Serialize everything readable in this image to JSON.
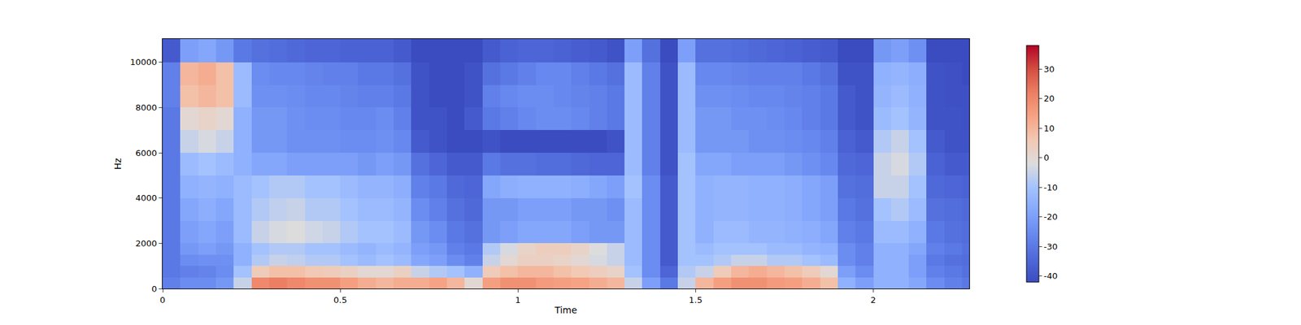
{
  "chart_data": {
    "type": "heatmap",
    "xlabel": "Time",
    "ylabel": "Hz",
    "x": [
      0,
      0.05,
      0.1,
      0.15,
      0.2,
      0.25,
      0.3,
      0.35,
      0.4,
      0.45,
      0.5,
      0.55,
      0.6,
      0.65,
      0.7,
      0.75,
      0.8,
      0.85,
      0.9,
      0.95,
      1.0,
      1.05,
      1.1,
      1.15,
      1.2,
      1.25,
      1.3,
      1.35,
      1.4,
      1.45,
      1.5,
      1.55,
      1.6,
      1.65,
      1.7,
      1.75,
      1.8,
      1.85,
      1.9,
      1.95,
      2.0,
      2.05,
      2.1,
      2.15,
      2.2,
      2.25,
      2.27
    ],
    "y": [
      0,
      500,
      1000,
      1500,
      2000,
      3000,
      4000,
      5000,
      6000,
      7000,
      8000,
      9000,
      10000,
      11025
    ],
    "cells": [
      [
        -28,
        -25,
        -25,
        -22,
        -5,
        20,
        22,
        20,
        18,
        18,
        15,
        12,
        10,
        12,
        12,
        14,
        10,
        0,
        15,
        18,
        18,
        16,
        15,
        14,
        12,
        10,
        -5,
        -20,
        -30,
        -5,
        10,
        15,
        18,
        18,
        16,
        15,
        12,
        8,
        -15,
        -20,
        -15,
        -15,
        -18,
        -25,
        -28,
        -30
      ],
      [
        -30,
        -28,
        -27,
        -25,
        -10,
        5,
        8,
        8,
        6,
        5,
        3,
        0,
        0,
        3,
        -5,
        -8,
        -10,
        -15,
        5,
        8,
        10,
        10,
        8,
        6,
        4,
        2,
        -10,
        -25,
        -35,
        -8,
        -5,
        5,
        10,
        12,
        10,
        8,
        5,
        0,
        -20,
        -25,
        -15,
        -15,
        -20,
        -28,
        -30,
        -32
      ],
      [
        -30,
        -25,
        -24,
        -24,
        -15,
        -8,
        -5,
        -6,
        -8,
        -8,
        -10,
        -12,
        -10,
        -12,
        -18,
        -20,
        -25,
        -28,
        -5,
        0,
        3,
        3,
        2,
        0,
        -3,
        -5,
        -12,
        -25,
        -38,
        -10,
        -10,
        -8,
        -5,
        -5,
        -8,
        -8,
        -10,
        -12,
        -25,
        -28,
        -15,
        -15,
        -20,
        -30,
        -32,
        -33
      ],
      [
        -30,
        -22,
        -20,
        -22,
        -15,
        -10,
        -8,
        -8,
        -10,
        -10,
        -12,
        -14,
        -12,
        -14,
        -20,
        -22,
        -28,
        -30,
        -8,
        -3,
        2,
        4,
        4,
        2,
        -2,
        -5,
        -12,
        -25,
        -38,
        -10,
        -12,
        -10,
        -10,
        -10,
        -12,
        -12,
        -14,
        -15,
        -25,
        -28,
        -15,
        -15,
        -18,
        -28,
        -30,
        -32
      ],
      [
        -30,
        -20,
        -18,
        -20,
        -12,
        -5,
        -3,
        -2,
        -4,
        -5,
        -8,
        -10,
        -10,
        -12,
        -22,
        -25,
        -30,
        -32,
        -22,
        -20,
        -18,
        -18,
        -18,
        -20,
        -22,
        -22,
        -12,
        -25,
        -38,
        -10,
        -15,
        -12,
        -12,
        -14,
        -14,
        -15,
        -16,
        -18,
        -28,
        -30,
        -12,
        -12,
        -15,
        -30,
        -32,
        -33
      ],
      [
        -30,
        -18,
        -16,
        -18,
        -12,
        -8,
        -6,
        -5,
        -8,
        -8,
        -10,
        -12,
        -12,
        -14,
        -25,
        -28,
        -32,
        -34,
        -22,
        -22,
        -20,
        -20,
        -20,
        -22,
        -22,
        -24,
        -12,
        -25,
        -38,
        -10,
        -15,
        -14,
        -14,
        -15,
        -15,
        -16,
        -18,
        -20,
        -30,
        -32,
        -10,
        -8,
        -12,
        -32,
        -33,
        -34
      ],
      [
        -30,
        -15,
        -14,
        -15,
        -12,
        -10,
        -8,
        -8,
        -10,
        -10,
        -12,
        -14,
        -14,
        -16,
        -28,
        -30,
        -34,
        -35,
        -18,
        -16,
        -15,
        -15,
        -15,
        -16,
        -18,
        -20,
        -10,
        -25,
        -38,
        -10,
        -15,
        -14,
        -14,
        -15,
        -15,
        -16,
        -18,
        -20,
        -32,
        -33,
        -5,
        -5,
        -10,
        -34,
        -35,
        -36
      ],
      [
        -30,
        -12,
        -10,
        -12,
        -15,
        -18,
        -18,
        -20,
        -20,
        -20,
        -20,
        -22,
        -20,
        -22,
        -32,
        -35,
        -38,
        -38,
        -30,
        -32,
        -32,
        -33,
        -33,
        -34,
        -35,
        -35,
        -12,
        -28,
        -40,
        -10,
        -18,
        -18,
        -20,
        -20,
        -20,
        -22,
        -24,
        -26,
        -34,
        -35,
        -5,
        -3,
        -8,
        -36,
        -38,
        -38
      ],
      [
        -30,
        -5,
        -3,
        -5,
        -15,
        -22,
        -22,
        -24,
        -24,
        -24,
        -25,
        -25,
        -24,
        -26,
        -38,
        -40,
        -42,
        -42,
        -40,
        -42,
        -42,
        -42,
        -42,
        -42,
        -42,
        -40,
        -12,
        -28,
        -40,
        -12,
        -22,
        -22,
        -22,
        -24,
        -24,
        -25,
        -26,
        -28,
        -36,
        -38,
        -8,
        -5,
        -10,
        -38,
        -40,
        -40
      ],
      [
        -30,
        0,
        2,
        0,
        -15,
        -22,
        -22,
        -24,
        -25,
        -25,
        -26,
        -26,
        -25,
        -28,
        -40,
        -40,
        -42,
        -38,
        -30,
        -28,
        -26,
        -25,
        -25,
        -26,
        -28,
        -30,
        -12,
        -28,
        -40,
        -12,
        -22,
        -22,
        -24,
        -24,
        -25,
        -26,
        -28,
        -30,
        -38,
        -40,
        -12,
        -10,
        -14,
        -40,
        -40,
        -41
      ],
      [
        -28,
        8,
        10,
        8,
        -12,
        -24,
        -24,
        -25,
        -26,
        -26,
        -27,
        -28,
        -28,
        -30,
        -40,
        -42,
        -42,
        -40,
        -28,
        -26,
        -25,
        -25,
        -26,
        -27,
        -28,
        -30,
        -12,
        -28,
        -40,
        -12,
        -24,
        -24,
        -25,
        -26,
        -26,
        -27,
        -28,
        -30,
        -38,
        -40,
        -14,
        -12,
        -15,
        -40,
        -41,
        -41
      ],
      [
        -28,
        10,
        12,
        8,
        -12,
        -25,
        -26,
        -26,
        -27,
        -28,
        -28,
        -30,
        -30,
        -32,
        -40,
        -42,
        -42,
        -40,
        -32,
        -30,
        -28,
        -26,
        -26,
        -28,
        -30,
        -32,
        -12,
        -28,
        -40,
        -12,
        -26,
        -26,
        -27,
        -28,
        -28,
        -28,
        -30,
        -32,
        -40,
        -40,
        -15,
        -14,
        -16,
        -40,
        -41,
        -42
      ],
      [
        -38,
        -20,
        -18,
        -22,
        -30,
        -32,
        -33,
        -34,
        -35,
        -35,
        -36,
        -36,
        -36,
        -38,
        -42,
        -42,
        -42,
        -42,
        -38,
        -36,
        -35,
        -35,
        -36,
        -37,
        -38,
        -40,
        -20,
        -32,
        -42,
        -20,
        -32,
        -32,
        -33,
        -34,
        -35,
        -36,
        -37,
        -38,
        -42,
        -42,
        -22,
        -20,
        -24,
        -42,
        -42,
        -42
      ]
    ],
    "xlim": [
      0,
      2.27
    ],
    "xticks": [
      0,
      0.5,
      1,
      1.5,
      2
    ],
    "ylim": [
      0,
      11025
    ],
    "yticks": [
      0,
      2000,
      4000,
      6000,
      8000,
      10000
    ],
    "colorbar": {
      "range": [
        -42,
        38
      ],
      "ticks": [
        -40,
        -30,
        -20,
        -10,
        0,
        10,
        20,
        30
      ]
    }
  }
}
